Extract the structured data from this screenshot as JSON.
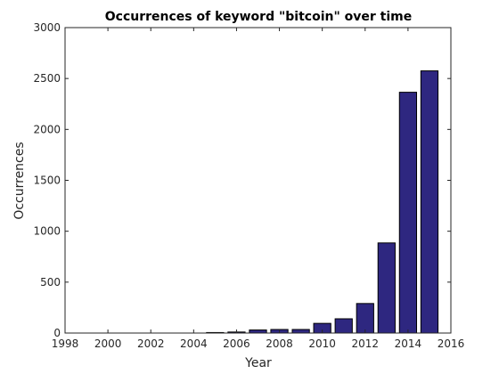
{
  "chart_data": {
    "type": "bar",
    "title": "Occurrences of keyword \"bitcoin\" over time",
    "xlabel": "Year",
    "ylabel": "Occurrences",
    "xlim": [
      1998,
      2016
    ],
    "ylim": [
      0,
      3000
    ],
    "xticks": [
      1998,
      2000,
      2002,
      2004,
      2006,
      2008,
      2010,
      2012,
      2014,
      2016
    ],
    "yticks": [
      0,
      500,
      1000,
      1500,
      2000,
      2500,
      3000
    ],
    "x": [
      2005,
      2006,
      2007,
      2008,
      2009,
      2010,
      2011,
      2012,
      2013,
      2014,
      2015
    ],
    "values": [
      5,
      10,
      30,
      35,
      35,
      95,
      140,
      290,
      885,
      2365,
      2575
    ],
    "bar_color": "#2e2780",
    "grid": false
  }
}
